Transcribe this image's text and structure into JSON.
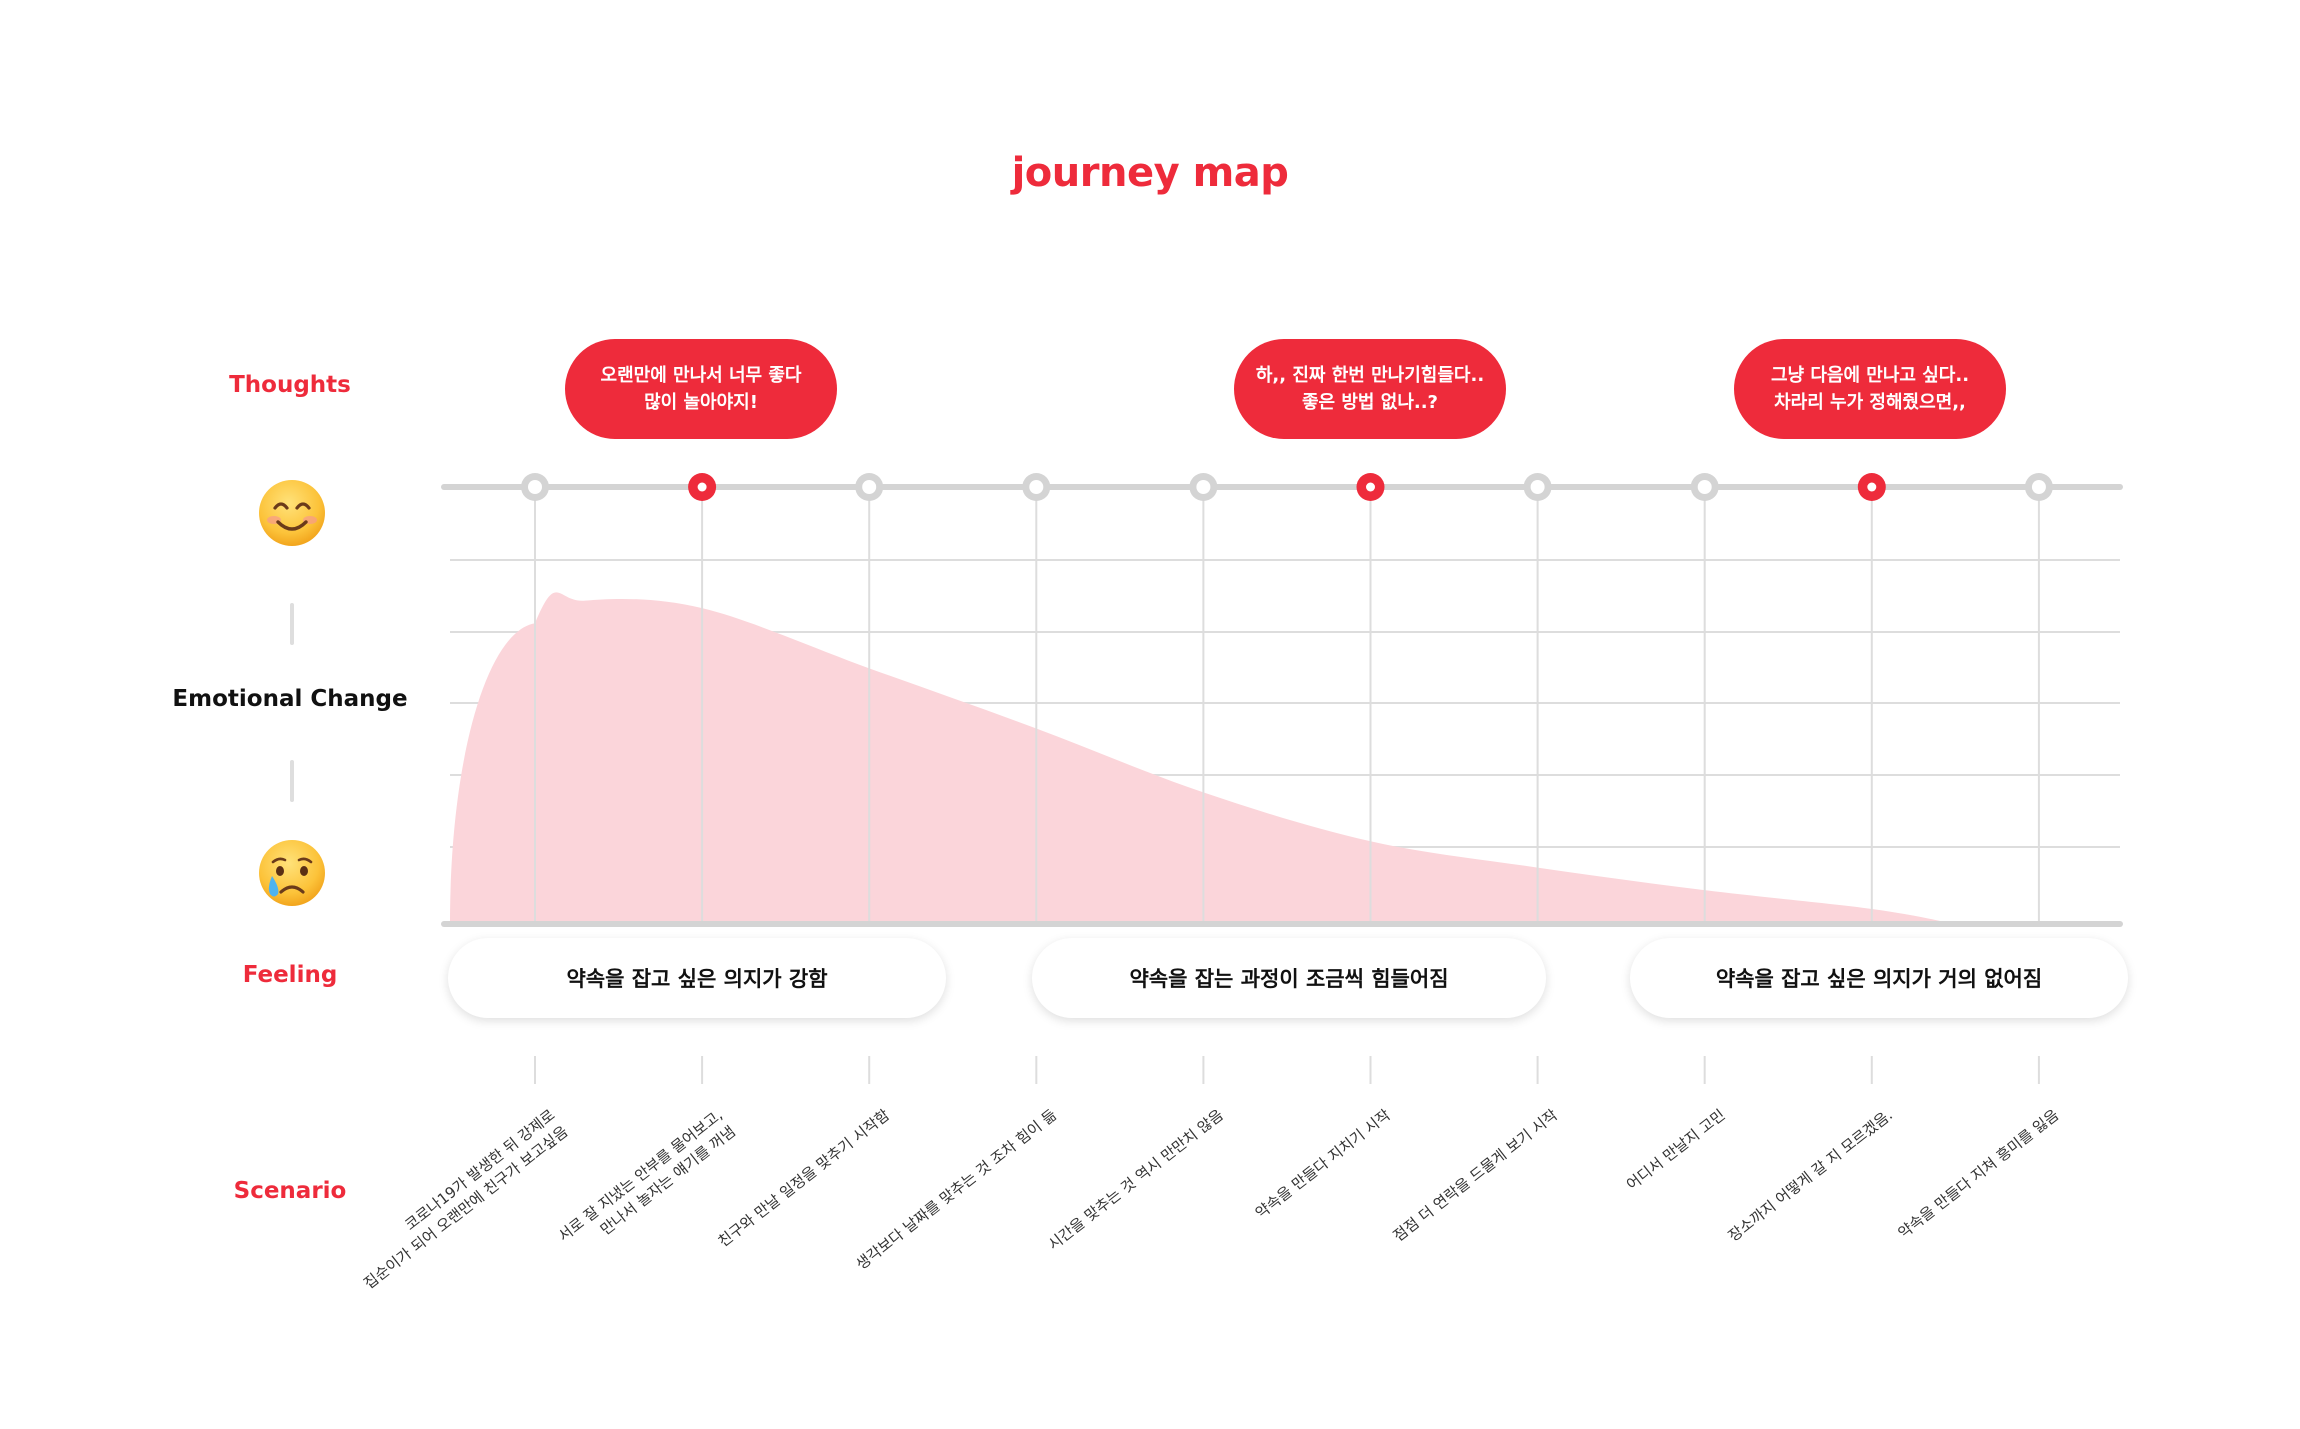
{
  "title": "journey map",
  "row_labels": {
    "thoughts": "Thoughts",
    "emotional_change": "Emotional Change",
    "feeling": "Feeling",
    "scenario": "Scenario"
  },
  "thoughts": [
    {
      "text": "오랜만에 만나서 너무 좋다\n많이 놀아야지!"
    },
    {
      "text": "하,, 진짜 한번 만나기힘들다..\n좋은 방법 없나..?"
    },
    {
      "text": "그냥 다음에 만나고 싶다..\n차라리 누가 정해줬으면,,"
    }
  ],
  "feelings": [
    {
      "text": "약속을 잡고 싶은 의지가 강함"
    },
    {
      "text": "약속을 잡는 과정이 조금씩 힘들어짐"
    },
    {
      "text": "약속을 잡고 싶은 의지가 거의 없어짐"
    }
  ],
  "scenarios": [
    {
      "text": "코로나19가 발생한 뒤 강제로\n집순이가 되어 오랜만에 친구가 보고싶음"
    },
    {
      "text": "서로 잘 지냈는 안부를 물어보고,\n만나서 놀자는 얘기를 꺼냄"
    },
    {
      "text": "친구와 만날 일정을 맞추기 시작함"
    },
    {
      "text": "생각보다 날짜를 맞추는 것 조차 힘이 듦"
    },
    {
      "text": "시간을 맞추는 것 역시 만만치 않음"
    },
    {
      "text": "약속을 만들다 지치기 시작"
    },
    {
      "text": "점점 더 연락을 드물게 보기 시작"
    },
    {
      "text": "어디서 만날지 고민"
    },
    {
      "text": "장소까지 어떻게 갈 지 모르겠음."
    },
    {
      "text": "약속을 만들다 지쳐 흥미를 잃음"
    }
  ],
  "timeline": {
    "steps": 10,
    "highlighted_steps": [
      2,
      6,
      9
    ]
  },
  "emotion_curve": [
    {
      "step": 0,
      "level": 0.0
    },
    {
      "step": 1,
      "level": 0.8
    },
    {
      "step": 1.3,
      "level": 0.86
    },
    {
      "step": 2,
      "level": 0.84
    },
    {
      "step": 3,
      "level": 0.68
    },
    {
      "step": 4,
      "level": 0.52
    },
    {
      "step": 5,
      "level": 0.35
    },
    {
      "step": 6,
      "level": 0.22
    },
    {
      "step": 7,
      "level": 0.15
    },
    {
      "step": 8,
      "level": 0.09
    },
    {
      "step": 9,
      "level": 0.04
    },
    {
      "step": 9.5,
      "level": 0.0
    }
  ],
  "icons": {
    "happy": "smiling-face-icon",
    "sad": "crying-face-icon"
  },
  "colors": {
    "accent": "#ee2b3b",
    "curve_fill": "#fbd5da",
    "grid": "#dddddd",
    "axis": "#d4d4d4"
  }
}
